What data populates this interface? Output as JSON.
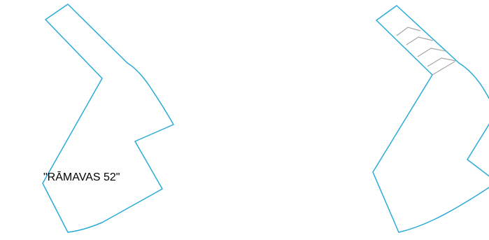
{
  "parcels": [
    {
      "label": "\"RĀMAVAS 52\""
    }
  ],
  "colors": {
    "parcel_outline": "#29abd8",
    "subdivision_lines": "#a6a6a6",
    "background": "#ffffff"
  }
}
